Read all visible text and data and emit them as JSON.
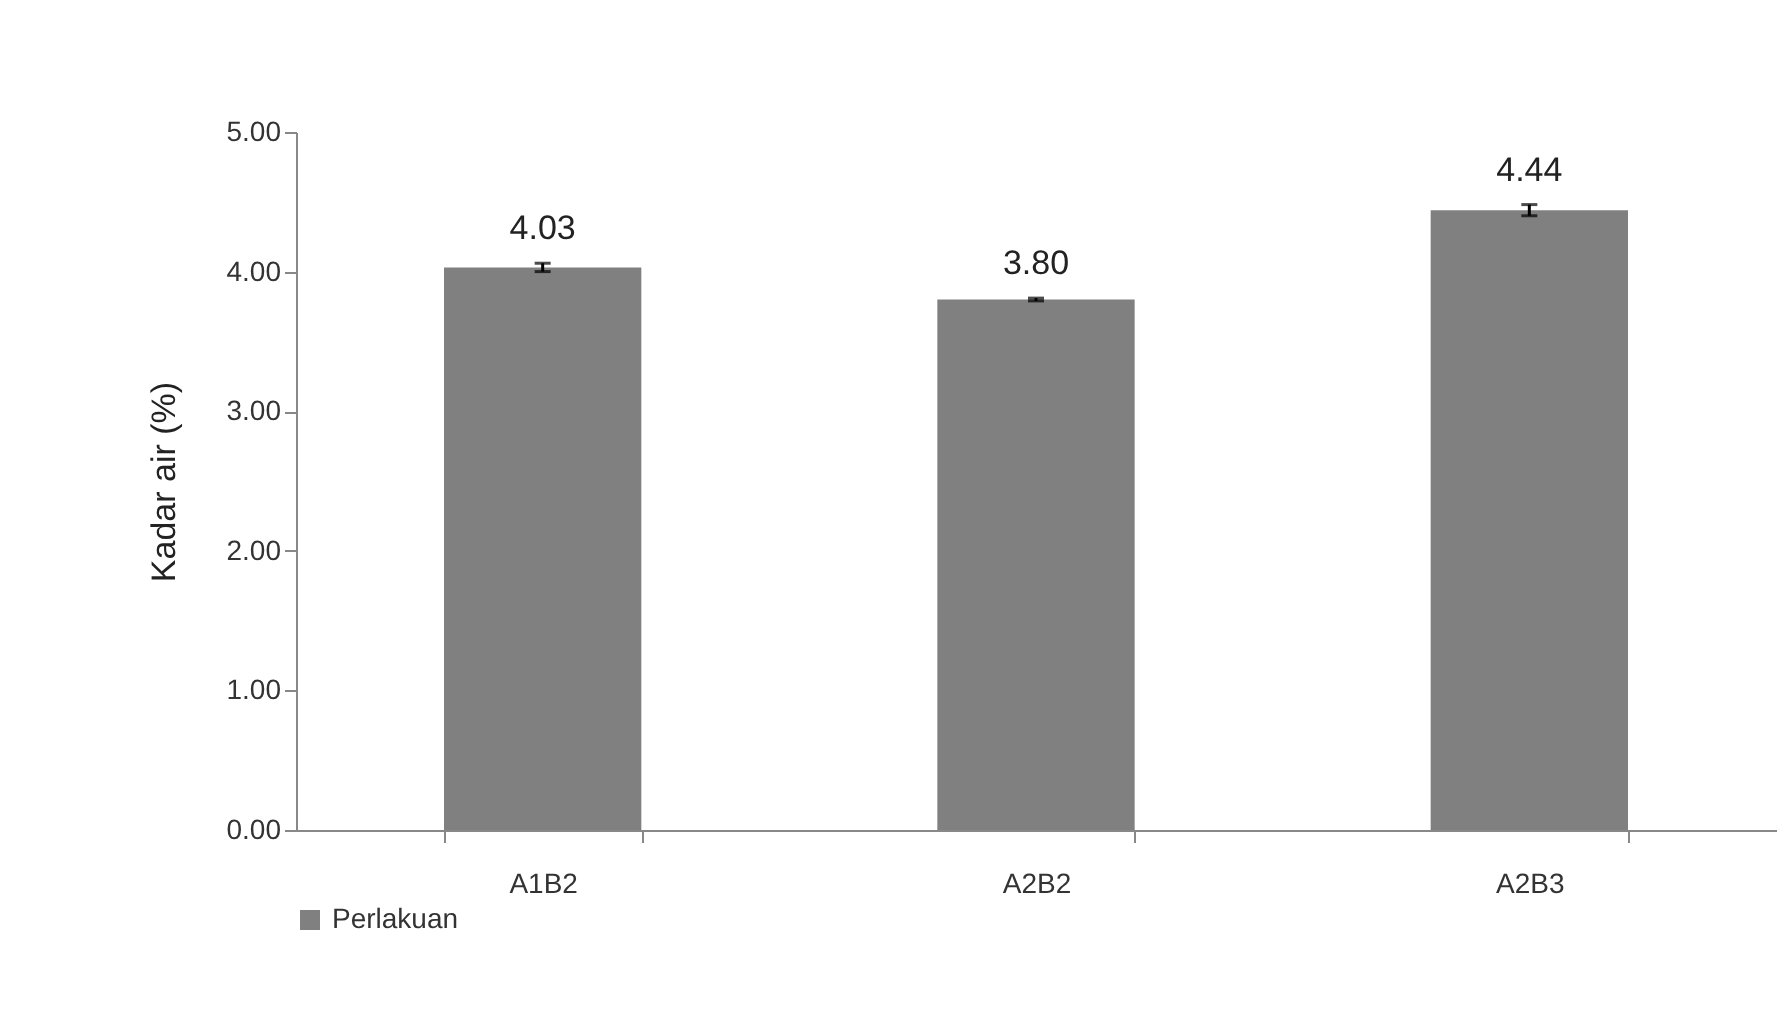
{
  "chart_data": {
    "type": "bar",
    "ylabel": "Kadar air (%)",
    "categories": [
      "A1B2",
      "A2B2",
      "A2B3"
    ],
    "series": [
      {
        "name": "Perlakuan",
        "color": "#808080",
        "values": [
          4.03,
          3.8,
          4.44
        ],
        "errors": [
          0.03,
          0.01,
          0.04
        ],
        "value_labels": [
          "4.03",
          "3.80",
          "4.44"
        ]
      }
    ],
    "ylim": [
      0,
      5
    ],
    "yticks": [
      {
        "value": 0,
        "label": "0.00"
      },
      {
        "value": 1,
        "label": "1.00"
      },
      {
        "value": 2,
        "label": "2.00"
      },
      {
        "value": 3,
        "label": "3.00"
      },
      {
        "value": 4,
        "label": "4.00"
      },
      {
        "value": 5,
        "label": "5.00"
      }
    ],
    "grid": false,
    "legend": "bottom"
  }
}
